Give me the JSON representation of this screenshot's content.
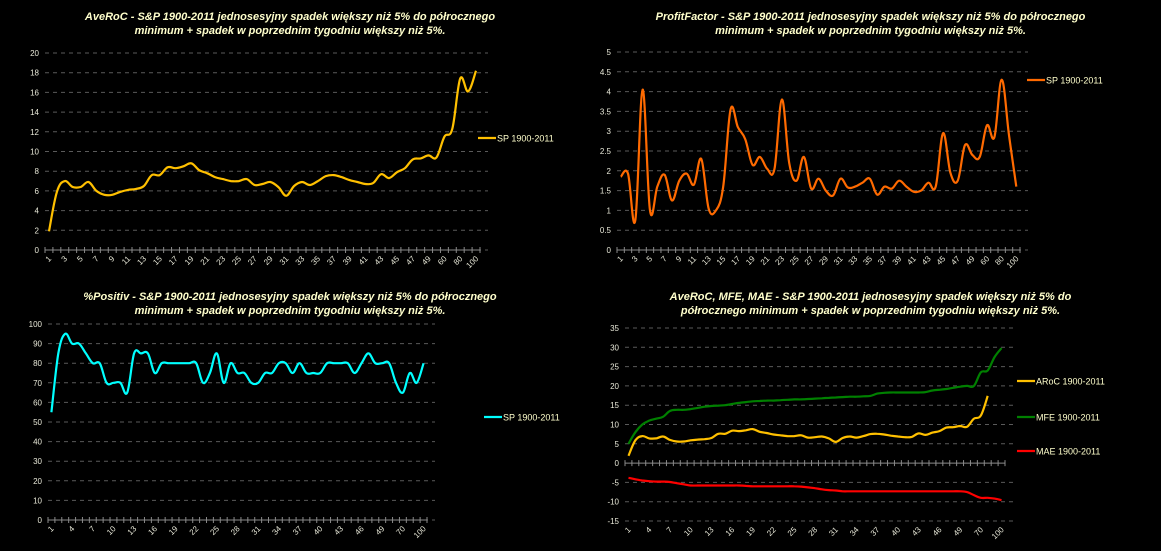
{
  "chart_data": [
    {
      "id": "averoc",
      "type": "line",
      "title_line1": "AveRoC - S&P 1900-2011 jednosesyjny spadek większy niż 5% do półrocznego",
      "title_line2": "minimum + spadek w poprzednim tygodniu większy niż 5%.",
      "xlabel": "",
      "ylabel": "",
      "ylim": [
        0,
        20
      ],
      "yticks": [
        0,
        2,
        4,
        6,
        8,
        10,
        12,
        14,
        16,
        18,
        20
      ],
      "grid": true,
      "legend_position": "right",
      "label_step": 2,
      "categories": [
        "1",
        "2",
        "3",
        "4",
        "5",
        "6",
        "7",
        "8",
        "9",
        "10",
        "11",
        "12",
        "13",
        "14",
        "15",
        "16",
        "17",
        "18",
        "19",
        "20",
        "21",
        "22",
        "23",
        "24",
        "25",
        "26",
        "27",
        "28",
        "29",
        "30",
        "31",
        "32",
        "33",
        "34",
        "35",
        "36",
        "37",
        "38",
        "39",
        "40",
        "41",
        "42",
        "43",
        "44",
        "45",
        "46",
        "47",
        "48",
        "49",
        "50",
        "60",
        "70",
        "80",
        "90",
        "100"
      ],
      "series": [
        {
          "name": "SP 1900-2011",
          "color": "#FFC000",
          "values": [
            1.9,
            5.9,
            7.0,
            6.4,
            6.4,
            6.9,
            6.0,
            5.6,
            5.6,
            5.9,
            6.1,
            6.2,
            6.5,
            7.6,
            7.6,
            8.4,
            8.3,
            8.5,
            8.8,
            8.1,
            7.8,
            7.4,
            7.2,
            7.0,
            7.0,
            7.2,
            6.6,
            6.7,
            6.9,
            6.4,
            5.5,
            6.5,
            6.9,
            6.6,
            7.0,
            7.5,
            7.6,
            7.4,
            7.1,
            6.9,
            6.7,
            6.8,
            7.7,
            7.3,
            7.9,
            8.3,
            9.2,
            9.3,
            9.6,
            9.4,
            11.5,
            12.3,
            17.4,
            16.1,
            18.2
          ]
        }
      ]
    },
    {
      "id": "profitfactor",
      "type": "line",
      "title_line1": "ProfitFactor - S&P 1900-2011 jednosesyjny spadek większy niż 5% do półrocznego",
      "title_line2": "minimum + spadek w poprzednim tygodniu większy niż 5%.",
      "xlabel": "",
      "ylabel": "",
      "ylim": [
        0,
        5
      ],
      "yticks": [
        0,
        0.5,
        1,
        1.5,
        2,
        2.5,
        3,
        3.5,
        4,
        4.5,
        5
      ],
      "grid": true,
      "legend_position": "top-right",
      "label_step": 2,
      "categories": [
        "1",
        "2",
        "3",
        "4",
        "5",
        "6",
        "7",
        "8",
        "9",
        "10",
        "11",
        "12",
        "13",
        "14",
        "15",
        "16",
        "17",
        "18",
        "19",
        "20",
        "21",
        "22",
        "23",
        "24",
        "25",
        "26",
        "27",
        "28",
        "29",
        "30",
        "31",
        "32",
        "33",
        "34",
        "35",
        "36",
        "37",
        "38",
        "39",
        "40",
        "41",
        "42",
        "43",
        "44",
        "45",
        "46",
        "47",
        "48",
        "49",
        "50",
        "60",
        "70",
        "80",
        "90",
        "100"
      ],
      "series": [
        {
          "name": "SP 1900-2011",
          "color": "#FF6A00",
          "values": [
            1.85,
            1.93,
            0.75,
            4.05,
            1.0,
            1.6,
            1.9,
            1.25,
            1.75,
            1.93,
            1.65,
            2.3,
            1.05,
            1.0,
            1.6,
            3.55,
            3.1,
            2.8,
            2.15,
            2.35,
            2.05,
            2.05,
            3.8,
            2.2,
            1.75,
            2.35,
            1.55,
            1.8,
            1.5,
            1.38,
            1.8,
            1.58,
            1.6,
            1.7,
            1.8,
            1.4,
            1.6,
            1.55,
            1.75,
            1.6,
            1.47,
            1.5,
            1.7,
            1.6,
            2.95,
            1.95,
            1.75,
            2.65,
            2.4,
            2.35,
            3.15,
            2.85,
            4.3,
            2.9,
            1.6
          ]
        }
      ]
    },
    {
      "id": "positiv",
      "type": "line",
      "title_line1": "%Positiv - S&P 1900-2011 jednosesyjny spadek większy niż 5% do półrocznego",
      "title_line2": "minimum + spadek w poprzednim tygodniu większy niż 5%.",
      "xlabel": "",
      "ylabel": "",
      "ylim": [
        0,
        100
      ],
      "yticks": [
        0,
        10,
        20,
        30,
        40,
        50,
        60,
        70,
        80,
        90,
        100
      ],
      "grid": true,
      "legend_position": "right",
      "label_step": 3,
      "categories": [
        "1",
        "2",
        "3",
        "4",
        "5",
        "6",
        "7",
        "8",
        "9",
        "10",
        "11",
        "12",
        "13",
        "14",
        "15",
        "16",
        "17",
        "18",
        "19",
        "20",
        "21",
        "22",
        "23",
        "24",
        "25",
        "26",
        "27",
        "28",
        "29",
        "30",
        "31",
        "32",
        "33",
        "34",
        "35",
        "36",
        "37",
        "38",
        "39",
        "40",
        "41",
        "42",
        "43",
        "44",
        "45",
        "46",
        "47",
        "48",
        "49",
        "50",
        "60",
        "70",
        "80",
        "90",
        "100"
      ],
      "series": [
        {
          "name": "SP 1900-2011",
          "color": "#00FFFF",
          "values": [
            55,
            85,
            95,
            90,
            90,
            85,
            80,
            80,
            70,
            70,
            70,
            65,
            85,
            85,
            85,
            75,
            80,
            80,
            80,
            80,
            80,
            80,
            70,
            75,
            85,
            70,
            80,
            75,
            75,
            70,
            70,
            75,
            75,
            80,
            80,
            75,
            80,
            75,
            75,
            75,
            80,
            80,
            80,
            80,
            75,
            80,
            85,
            80,
            80,
            80,
            70,
            65,
            75,
            70,
            80
          ]
        }
      ]
    },
    {
      "id": "aroc-mfe-mae",
      "type": "line",
      "title_line1": "AveRoC, MFE, MAE - S&P 1900-2011 jednosesyjny spadek większy niż 5% do",
      "title_line2": "półrocznego minimum + spadek w poprzednim tygodniu większy niż 5%.",
      "xlabel": "",
      "ylabel": "",
      "ylim": [
        -15,
        35
      ],
      "yticks": [
        -15,
        -10,
        -5,
        0,
        5,
        10,
        15,
        20,
        25,
        30,
        35
      ],
      "grid": true,
      "legend_position": "right",
      "label_step": 3,
      "categories": [
        "1",
        "2",
        "3",
        "4",
        "5",
        "6",
        "7",
        "8",
        "9",
        "10",
        "11",
        "12",
        "13",
        "14",
        "15",
        "16",
        "17",
        "18",
        "19",
        "20",
        "21",
        "22",
        "23",
        "24",
        "25",
        "26",
        "27",
        "28",
        "29",
        "30",
        "31",
        "32",
        "33",
        "34",
        "35",
        "36",
        "37",
        "38",
        "39",
        "40",
        "41",
        "42",
        "43",
        "44",
        "45",
        "46",
        "47",
        "48",
        "49",
        "50",
        "60",
        "70",
        "80",
        "90",
        "100"
      ],
      "series": [
        {
          "name": "ARoC 1900-2011",
          "color": "#FFC000",
          "values": [
            1.9,
            5.9,
            7.0,
            6.4,
            6.4,
            6.9,
            6.0,
            5.6,
            5.6,
            5.9,
            6.1,
            6.2,
            6.5,
            7.6,
            7.6,
            8.4,
            8.3,
            8.5,
            8.8,
            8.1,
            7.8,
            7.4,
            7.2,
            7.0,
            7.0,
            7.2,
            6.6,
            6.7,
            6.9,
            6.4,
            5.5,
            6.5,
            6.9,
            6.6,
            7.0,
            7.5,
            7.6,
            7.4,
            7.1,
            6.9,
            6.7,
            6.8,
            7.7,
            7.3,
            7.9,
            8.3,
            9.2,
            9.3,
            9.6,
            9.4,
            11.5,
            12.3,
            17.4,
            null,
            null
          ]
        },
        {
          "name": "MFE 1900-2011",
          "color": "#008000",
          "values": [
            5.0,
            8.0,
            10.0,
            11.0,
            11.5,
            12.0,
            13.5,
            13.8,
            13.8,
            14.0,
            14.3,
            14.6,
            14.8,
            14.9,
            15.0,
            15.3,
            15.6,
            15.8,
            16.0,
            16.1,
            16.2,
            16.2,
            16.3,
            16.4,
            16.5,
            16.5,
            16.6,
            16.7,
            16.8,
            16.9,
            17.0,
            17.1,
            17.2,
            17.2,
            17.3,
            17.4,
            18.0,
            18.2,
            18.3,
            18.3,
            18.3,
            18.3,
            18.3,
            18.4,
            18.8,
            19.0,
            19.2,
            19.5,
            19.8,
            20.0,
            20.0,
            23.5,
            24.0,
            27.5,
            29.8
          ]
        },
        {
          "name": "MAE 1900-2011",
          "color": "#FF0000",
          "values": [
            -3.8,
            -4.2,
            -4.5,
            -4.7,
            -4.8,
            -4.8,
            -4.9,
            -5.2,
            -5.5,
            -5.8,
            -5.8,
            -5.8,
            -5.8,
            -5.8,
            -5.8,
            -5.8,
            -5.8,
            -5.9,
            -6.0,
            -6.0,
            -6.0,
            -6.0,
            -6.0,
            -6.0,
            -6.0,
            -6.1,
            -6.3,
            -6.5,
            -6.8,
            -7.0,
            -7.1,
            -7.3,
            -7.3,
            -7.3,
            -7.3,
            -7.3,
            -7.3,
            -7.3,
            -7.3,
            -7.3,
            -7.3,
            -7.3,
            -7.3,
            -7.3,
            -7.3,
            -7.3,
            -7.3,
            -7.3,
            -7.3,
            -7.5,
            -8.3,
            -9.0,
            -9.0,
            -9.2,
            -9.6
          ]
        }
      ]
    }
  ]
}
